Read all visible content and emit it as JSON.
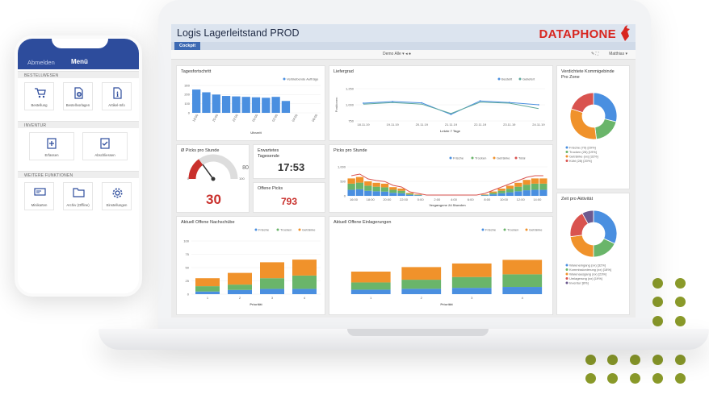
{
  "app": {
    "title": "Logis  Lagerleitstand PROD",
    "logo": "DATAPHONE",
    "tab": "Cockpit",
    "toolbar_center": "Demo Alle",
    "toolbar_right": "Matthias",
    "colors": {
      "accent": "#3d6ab3",
      "blue": "#4a8fe0",
      "green": "#6ab56a",
      "orange": "#f0922b",
      "red": "#d9534f",
      "purple": "#6d5a8f"
    }
  },
  "panels": {
    "tagesfortschritt": {
      "title": "Tagesfortschritt",
      "legend": "Verbleibende Aufträge",
      "xlabel": "Uhrzeit",
      "ylim": [
        0,
        300
      ],
      "yticks": [
        "300",
        "200",
        "100",
        "0"
      ],
      "categories": [
        "18:00",
        "19:00",
        "20:00",
        "21:00",
        "22:00",
        "23:00",
        "00:00",
        "01:00",
        "02:00",
        "03:00",
        "04:00",
        "05:00",
        "06:00"
      ],
      "values": [
        255,
        225,
        200,
        185,
        180,
        175,
        170,
        165,
        175,
        130,
        0,
        0,
        0
      ]
    },
    "liefergrad": {
      "title": "Liefergrad",
      "ylabel": "Positionen",
      "xlabel": "Letzte 7 Tage",
      "legend": [
        "Bestellt",
        "Geliefert"
      ],
      "yticks": [
        "1,250",
        "1,000",
        "750"
      ],
      "categories": [
        "18.11.19",
        "19.11.19",
        "20.11.19",
        "21.11.19",
        "22.11.19",
        "23.11.19",
        "24.11.19"
      ]
    },
    "verdichtete": {
      "title": "Verdichtete Kommigebinde Pro Zone",
      "legend": [
        "Frische (70) [29%]",
        "Trocken (26) [19%]",
        "Getränke (xx) [32%]",
        "Kühl (28) [20%]"
      ],
      "values": [
        29,
        19,
        32,
        20
      ]
    },
    "picks_stunde": {
      "title": "Ø Picks pro Stunde",
      "value": "30",
      "gauge_min": "0",
      "gauge_mid": "80",
      "gauge_max": "100"
    },
    "tagesende": {
      "title": "Erwartetes Tagesende",
      "value": "17:53"
    },
    "offene_picks": {
      "title": "Offene Picks",
      "value": "793"
    },
    "picks_chart": {
      "title": "Picks pro Stunde",
      "legend": [
        "Frische",
        "Trocken",
        "Getränke",
        "Total"
      ],
      "xlabel": "Vergangene 24 Stunden",
      "yticks": [
        "1,000",
        "500",
        "0"
      ],
      "categories": [
        "16:00",
        "18:00",
        "20:00",
        "22:00",
        "0:00",
        "2:00",
        "4:00",
        "6:00",
        "8:00",
        "10:00",
        "12:00",
        "14:00"
      ]
    },
    "zeit_aktivitaet": {
      "title": "Zeit pro Aktivität",
      "legend": [
        "Wareneingang (xx) [32%]",
        "Kommissionierung (xx) [18%]",
        "Warenausgang (xx) [23%]",
        "Umlagerung (xx) [19%]",
        "Inventur [8%]"
      ],
      "values": [
        32,
        18,
        23,
        19,
        8
      ]
    },
    "nachschuebe": {
      "title": "Aktuell Offene Nachschübe",
      "legend": [
        "Frische",
        "Trocken",
        "Getränke"
      ],
      "xlabel": "Priorität",
      "yticks": [
        "100",
        "75",
        "50",
        "25",
        "0"
      ],
      "categories": [
        "1",
        "2",
        "3",
        "4"
      ],
      "series": [
        {
          "name": "Frische",
          "values": [
            5,
            8,
            10,
            10
          ]
        },
        {
          "name": "Trocken",
          "values": [
            10,
            10,
            20,
            25
          ]
        },
        {
          "name": "Getränke",
          "values": [
            15,
            22,
            30,
            30
          ]
        }
      ],
      "ylim": [
        0,
        100
      ]
    },
    "einlagerungen": {
      "title": "Aktuell Offene Einlagerungen",
      "legend": [
        "Frische",
        "Trocken",
        "Getränke"
      ],
      "xlabel": "Priorität",
      "categories": [
        "1",
        "2",
        "3",
        "4"
      ],
      "series": [
        {
          "name": "Frische",
          "values": [
            5,
            6,
            7,
            8
          ]
        },
        {
          "name": "Trocken",
          "values": [
            8,
            10,
            12,
            14
          ]
        },
        {
          "name": "Getränke",
          "values": [
            12,
            14,
            15,
            16
          ]
        }
      ],
      "ylim": [
        0,
        50
      ]
    }
  },
  "phone": {
    "abmelden": "Abmelden",
    "menu": "Menü",
    "sections": [
      {
        "title": "BESTELLWESEN",
        "items": [
          "Bestellung",
          "Bestellvorlagen",
          "Artikel-Info"
        ]
      },
      {
        "title": "INVENTUR",
        "items": [
          "Erfassen",
          "Abschliessen"
        ]
      },
      {
        "title": "WEITERE FUNKTIONEN",
        "items": [
          "Minikarten",
          "Archiv (Offline)",
          "Einstellungen"
        ]
      }
    ]
  }
}
